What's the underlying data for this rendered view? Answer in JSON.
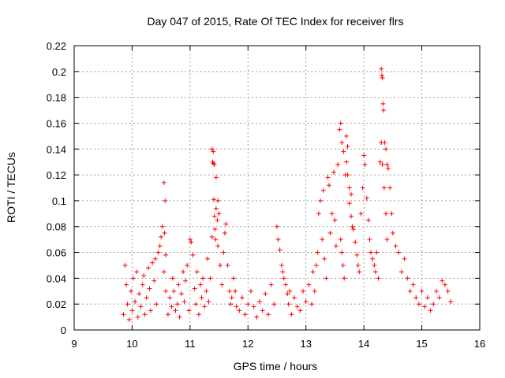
{
  "chart_data": {
    "type": "scatter",
    "title": "Day 047 of 2015, Rate Of TEC Index for receiver flrs",
    "xlabel": "GPS time / hours",
    "ylabel": "ROTI / TECUs",
    "xlim": [
      9,
      16
    ],
    "ylim": [
      0,
      0.22
    ],
    "xticks": [
      "9",
      "10",
      "11",
      "12",
      "13",
      "14",
      "15",
      "16"
    ],
    "yticks": [
      "0",
      "0.02",
      "0.04",
      "0.06",
      "0.08",
      "0.1",
      "0.12",
      "0.14",
      "0.16",
      "0.18",
      "0.2",
      "0.22"
    ],
    "grid": true,
    "marker": "+",
    "color": "#ff0000",
    "series": [
      {
        "name": "ROTI",
        "x": [
          9.85,
          9.88,
          9.9,
          9.92,
          9.95,
          9.98,
          10.0,
          10.02,
          10.05,
          10.08,
          10.1,
          10.12,
          10.15,
          10.18,
          10.2,
          10.22,
          10.25,
          10.28,
          10.3,
          10.32,
          10.35,
          10.38,
          10.4,
          10.42,
          10.45,
          10.48,
          10.5,
          10.52,
          10.55,
          10.58,
          10.55,
          10.57,
          10.56,
          10.58,
          10.62,
          10.65,
          10.68,
          10.7,
          10.72,
          10.75,
          10.78,
          10.8,
          10.82,
          10.85,
          10.88,
          10.9,
          10.92,
          10.95,
          10.98,
          11.0,
          11.02,
          11.05,
          11.08,
          11.1,
          11.12,
          11.15,
          11.18,
          11.2,
          11.22,
          11.25,
          11.28,
          11.3,
          11.32,
          11.35,
          11.38,
          11.4,
          11.42,
          11.45,
          11.48,
          11.5,
          11.38,
          11.39,
          11.4,
          11.41,
          11.42,
          11.43,
          11.44,
          11.45,
          11.47,
          11.48,
          11.52,
          11.55,
          11.58,
          11.6,
          11.62,
          11.65,
          11.68,
          11.7,
          11.72,
          11.75,
          11.78,
          11.8,
          11.85,
          11.9,
          11.95,
          12.0,
          12.05,
          12.1,
          12.15,
          12.2,
          12.25,
          12.3,
          12.35,
          12.4,
          12.45,
          12.5,
          12.52,
          12.55,
          12.58,
          12.6,
          12.62,
          12.65,
          12.68,
          12.7,
          12.72,
          12.75,
          12.8,
          12.85,
          12.9,
          12.95,
          13.0,
          13.05,
          13.1,
          13.12,
          13.15,
          13.18,
          13.2,
          13.22,
          13.25,
          13.28,
          13.3,
          13.32,
          13.35,
          13.38,
          13.4,
          13.42,
          13.45,
          13.48,
          13.5,
          13.52,
          13.55,
          13.58,
          13.6,
          13.62,
          13.65,
          13.68,
          13.7,
          13.72,
          13.75,
          13.78,
          13.8,
          13.6,
          13.62,
          13.64,
          13.66,
          13.7,
          13.72,
          13.75,
          13.78,
          13.82,
          13.85,
          13.88,
          13.9,
          13.92,
          13.95,
          13.98,
          14.0,
          14.02,
          14.05,
          14.08,
          14.1,
          14.12,
          14.15,
          14.18,
          14.2,
          14.22,
          14.25,
          14.28,
          14.3,
          14.32,
          14.35,
          14.38,
          14.4,
          14.3,
          14.31,
          14.32,
          14.33,
          14.34,
          14.36,
          14.38,
          14.4,
          14.42,
          14.45,
          14.48,
          14.5,
          14.55,
          14.6,
          14.65,
          14.7,
          14.75,
          14.8,
          14.85,
          14.9,
          14.95,
          15.0,
          15.05,
          15.1,
          15.15,
          15.2,
          15.25,
          15.3,
          15.35,
          15.4,
          15.45,
          15.5
        ],
        "y": [
          0.012,
          0.05,
          0.035,
          0.02,
          0.008,
          0.03,
          0.015,
          0.04,
          0.022,
          0.045,
          0.01,
          0.028,
          0.018,
          0.035,
          0.042,
          0.012,
          0.025,
          0.048,
          0.032,
          0.015,
          0.052,
          0.038,
          0.055,
          0.02,
          0.06,
          0.065,
          0.072,
          0.08,
          0.045,
          0.03,
          0.114,
          0.1,
          0.075,
          0.058,
          0.012,
          0.025,
          0.018,
          0.04,
          0.03,
          0.015,
          0.02,
          0.035,
          0.01,
          0.028,
          0.045,
          0.022,
          0.038,
          0.05,
          0.015,
          0.07,
          0.068,
          0.058,
          0.032,
          0.02,
          0.045,
          0.012,
          0.035,
          0.025,
          0.04,
          0.018,
          0.03,
          0.055,
          0.022,
          0.04,
          0.072,
          0.138,
          0.128,
          0.118,
          0.1,
          0.09,
          0.14,
          0.13,
          0.129,
          0.101,
          0.088,
          0.078,
          0.07,
          0.094,
          0.085,
          0.065,
          0.05,
          0.035,
          0.06,
          0.075,
          0.082,
          0.05,
          0.03,
          0.02,
          0.025,
          0.04,
          0.03,
          0.018,
          0.015,
          0.025,
          0.012,
          0.02,
          0.03,
          0.018,
          0.01,
          0.022,
          0.015,
          0.028,
          0.012,
          0.035,
          0.02,
          0.08,
          0.07,
          0.062,
          0.05,
          0.045,
          0.04,
          0.035,
          0.028,
          0.02,
          0.03,
          0.012,
          0.025,
          0.018,
          0.015,
          0.03,
          0.022,
          0.035,
          0.02,
          0.045,
          0.03,
          0.05,
          0.06,
          0.09,
          0.1,
          0.07,
          0.108,
          0.055,
          0.04,
          0.118,
          0.112,
          0.075,
          0.09,
          0.122,
          0.085,
          0.065,
          0.128,
          0.155,
          0.16,
          0.145,
          0.138,
          0.12,
          0.15,
          0.142,
          0.11,
          0.105,
          0.08,
          0.07,
          0.06,
          0.05,
          0.04,
          0.13,
          0.12,
          0.098,
          0.088,
          0.078,
          0.068,
          0.058,
          0.05,
          0.045,
          0.09,
          0.11,
          0.135,
          0.128,
          0.102,
          0.085,
          0.07,
          0.06,
          0.055,
          0.05,
          0.045,
          0.06,
          0.04,
          0.13,
          0.145,
          0.128,
          0.11,
          0.09,
          0.07,
          0.202,
          0.197,
          0.195,
          0.175,
          0.17,
          0.145,
          0.14,
          0.128,
          0.125,
          0.11,
          0.09,
          0.075,
          0.065,
          0.06,
          0.045,
          0.055,
          0.04,
          0.03,
          0.035,
          0.025,
          0.02,
          0.03,
          0.018,
          0.025,
          0.015,
          0.02,
          0.03,
          0.025,
          0.038,
          0.035,
          0.03,
          0.022
        ]
      }
    ]
  }
}
